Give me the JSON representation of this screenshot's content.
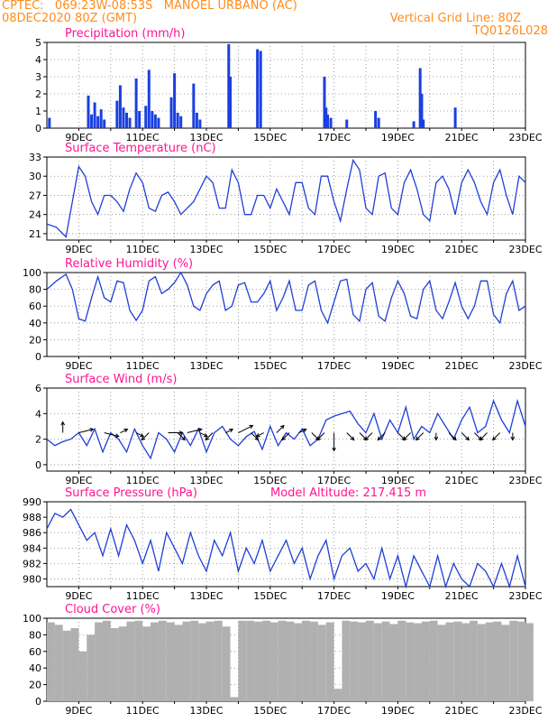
{
  "header": {
    "line1_left": "CPTEC:   069:23W-08:53S   MANOEL URBANO (AC)",
    "line2_left": "08DEC2020 80Z (GMT)",
    "line2_right": "Vertical Grid Line: 80Z",
    "line3_right": "TQ0126L028"
  },
  "colors": {
    "header": "#ff8c1a",
    "title": "#ff1493",
    "line": "#1f3fd6",
    "bar": "#1a3fe0",
    "cloud": "#b0b0b0"
  },
  "chart_data": [
    {
      "type": "bar",
      "title": "Precipitation (mm/h)",
      "ylim": [
        0,
        5
      ],
      "yticks": [
        "0",
        "1",
        "2",
        "3",
        "4",
        "5"
      ],
      "x_range_days": [
        8.0,
        23.0
      ],
      "xticks": [
        "9DEC",
        "11DEC",
        "13DEC",
        "15DEC",
        "17DEC",
        "19DEC",
        "21DEC",
        "23DEC"
      ],
      "x": [
        8.08,
        9.3,
        9.4,
        9.5,
        9.6,
        9.7,
        9.8,
        10.2,
        10.3,
        10.4,
        10.5,
        10.6,
        10.8,
        10.9,
        11.1,
        11.2,
        11.3,
        11.4,
        11.5,
        11.9,
        12.0,
        12.1,
        12.2,
        12.6,
        12.7,
        12.8,
        13.7,
        13.75,
        14.6,
        14.7,
        16.7,
        16.75,
        16.8,
        16.9,
        17.4,
        18.3,
        18.4,
        19.5,
        19.7,
        19.75,
        19.8,
        20.8
      ],
      "values": [
        0.6,
        1.9,
        0.8,
        1.5,
        0.7,
        1.1,
        0.5,
        1.6,
        2.5,
        1.2,
        0.9,
        0.6,
        2.9,
        1.0,
        1.3,
        3.4,
        1.0,
        0.8,
        0.6,
        1.8,
        3.2,
        0.9,
        0.7,
        2.6,
        0.9,
        0.5,
        4.9,
        3.0,
        4.6,
        4.5,
        3.0,
        1.2,
        0.8,
        0.6,
        0.5,
        1.0,
        0.6,
        0.4,
        3.5,
        2.0,
        0.5,
        1.2
      ]
    },
    {
      "type": "line",
      "title": "Surface Temperature (nC)",
      "ylim": [
        20,
        33
      ],
      "yticks": [
        "21",
        "24",
        "27",
        "30",
        "33"
      ],
      "x_range_days": [
        8.0,
        23.0
      ],
      "xticks": [
        "9DEC",
        "11DEC",
        "13DEC",
        "15DEC",
        "17DEC",
        "19DEC",
        "21DEC",
        "23DEC"
      ],
      "x": [
        8.0,
        8.3,
        8.6,
        8.8,
        9.0,
        9.2,
        9.4,
        9.6,
        9.8,
        10.0,
        10.2,
        10.4,
        10.6,
        10.8,
        11.0,
        11.2,
        11.4,
        11.6,
        11.8,
        12.0,
        12.2,
        12.4,
        12.6,
        12.8,
        13.0,
        13.2,
        13.4,
        13.6,
        13.8,
        14.0,
        14.2,
        14.4,
        14.6,
        14.8,
        15.0,
        15.2,
        15.4,
        15.6,
        15.8,
        16.0,
        16.2,
        16.4,
        16.6,
        16.8,
        17.0,
        17.2,
        17.4,
        17.6,
        17.8,
        18.0,
        18.2,
        18.4,
        18.6,
        18.8,
        19.0,
        19.2,
        19.4,
        19.6,
        19.8,
        20.0,
        20.2,
        20.4,
        20.6,
        20.8,
        21.0,
        21.2,
        21.4,
        21.6,
        21.8,
        22.0,
        22.2,
        22.4,
        22.6,
        22.8,
        23.0
      ],
      "values": [
        22.5,
        22,
        20.5,
        26,
        31.5,
        30,
        26,
        24,
        27,
        27,
        26,
        24.5,
        28,
        30.5,
        29,
        25,
        24.5,
        27,
        27.5,
        26,
        24,
        25,
        26,
        28,
        30,
        29,
        25,
        25,
        31,
        29,
        24,
        24,
        27,
        27,
        25,
        28,
        26,
        24,
        29,
        29,
        25,
        24,
        30,
        30,
        26,
        23,
        28,
        32.5,
        31,
        25,
        24,
        30,
        30.5,
        25,
        24,
        29,
        31,
        28,
        24,
        23,
        29,
        30,
        28,
        24,
        29,
        31,
        29,
        26,
        24,
        29,
        31,
        27,
        24,
        30,
        29
      ]
    },
    {
      "type": "line",
      "title": "Relative Humidity (%)",
      "ylim": [
        0,
        100
      ],
      "yticks": [
        "0",
        "20",
        "40",
        "60",
        "80",
        "100"
      ],
      "x_range_days": [
        8.0,
        23.0
      ],
      "xticks": [
        "9DEC",
        "11DEC",
        "13DEC",
        "15DEC",
        "17DEC",
        "19DEC",
        "21DEC",
        "23DEC"
      ],
      "x": [
        8.0,
        8.3,
        8.6,
        8.8,
        9.0,
        9.2,
        9.4,
        9.6,
        9.8,
        10.0,
        10.2,
        10.4,
        10.6,
        10.8,
        11.0,
        11.2,
        11.4,
        11.6,
        11.8,
        12.0,
        12.2,
        12.4,
        12.6,
        12.8,
        13.0,
        13.2,
        13.4,
        13.6,
        13.8,
        14.0,
        14.2,
        14.4,
        14.6,
        14.8,
        15.0,
        15.2,
        15.4,
        15.6,
        15.8,
        16.0,
        16.2,
        16.4,
        16.6,
        16.8,
        17.0,
        17.2,
        17.4,
        17.6,
        17.8,
        18.0,
        18.2,
        18.4,
        18.6,
        18.8,
        19.0,
        19.2,
        19.4,
        19.6,
        19.8,
        20.0,
        20.2,
        20.4,
        20.6,
        20.8,
        21.0,
        21.2,
        21.4,
        21.6,
        21.8,
        22.0,
        22.2,
        22.4,
        22.6,
        22.8,
        23.0
      ],
      "values": [
        80,
        90,
        98,
        80,
        45,
        42,
        70,
        95,
        70,
        65,
        90,
        88,
        55,
        43,
        55,
        90,
        95,
        75,
        80,
        88,
        100,
        85,
        60,
        55,
        75,
        85,
        90,
        55,
        60,
        85,
        88,
        65,
        65,
        75,
        90,
        55,
        70,
        90,
        55,
        55,
        85,
        90,
        55,
        40,
        65,
        90,
        92,
        50,
        42,
        80,
        88,
        48,
        42,
        70,
        90,
        75,
        48,
        45,
        80,
        90,
        55,
        45,
        65,
        88,
        60,
        45,
        60,
        90,
        90,
        50,
        40,
        75,
        90,
        55,
        60
      ]
    },
    {
      "type": "line",
      "title": "Surface Wind (m/s)",
      "ylim": [
        -0.5,
        6
      ],
      "yticks": [
        "0",
        "2",
        "4",
        "6"
      ],
      "x_range_days": [
        8.0,
        23.0
      ],
      "xticks": [
        "9DEC",
        "11DEC",
        "13DEC",
        "15DEC",
        "17DEC",
        "19DEC",
        "21DEC",
        "23DEC"
      ],
      "x": [
        8.0,
        8.25,
        8.5,
        8.75,
        9.0,
        9.25,
        9.5,
        9.75,
        10.0,
        10.25,
        10.5,
        10.75,
        11.0,
        11.25,
        11.5,
        11.75,
        12.0,
        12.25,
        12.5,
        12.75,
        13.0,
        13.25,
        13.5,
        13.75,
        14.0,
        14.25,
        14.5,
        14.75,
        15.0,
        15.25,
        15.5,
        15.75,
        16.0,
        16.25,
        16.5,
        16.75,
        17.0,
        17.25,
        17.5,
        17.75,
        18.0,
        18.25,
        18.5,
        18.75,
        19.0,
        19.25,
        19.5,
        19.75,
        20.0,
        20.25,
        20.5,
        20.75,
        21.0,
        21.25,
        21.5,
        21.75,
        22.0,
        22.25,
        22.5,
        22.75,
        23.0
      ],
      "values": [
        2.0,
        1.5,
        1.8,
        2.0,
        2.5,
        1.5,
        2.8,
        1.0,
        2.5,
        2.0,
        1.0,
        2.8,
        1.5,
        0.5,
        2.5,
        2.0,
        1.0,
        2.5,
        1.5,
        2.8,
        1.0,
        2.5,
        3.0,
        2.0,
        1.5,
        2.2,
        2.6,
        1.2,
        3.0,
        1.5,
        2.5,
        2.0,
        2.8,
        1.5,
        2.0,
        3.5,
        3.8,
        4.0,
        4.2,
        3.2,
        2.5,
        4.0,
        2.0,
        3.5,
        2.5,
        4.5,
        2.0,
        3.0,
        2.5,
        4.0,
        3.0,
        2.0,
        3.5,
        4.5,
        2.5,
        3.0,
        5.0,
        3.5,
        2.5,
        5.0,
        3.0
      ],
      "arrow_x": [
        8.5,
        9.0,
        9.8,
        10.3,
        10.8,
        11.2,
        11.8,
        12.1,
        12.4,
        12.8,
        13.2,
        13.6,
        14.0,
        14.4,
        14.8,
        15.2,
        15.6,
        15.9,
        16.3,
        16.7,
        17.0,
        17.4,
        17.8,
        18.2,
        18.6,
        19.0,
        19.4,
        19.8,
        20.2,
        20.6,
        21.0,
        21.4,
        21.8,
        22.2,
        22.6
      ],
      "arrow_u": [
        0,
        2,
        2,
        1,
        1,
        -1,
        2,
        1,
        2,
        1,
        -1,
        1,
        2,
        1,
        -1,
        1,
        -1,
        1,
        1,
        -1,
        0,
        1,
        1,
        -1,
        -1,
        1,
        -1,
        -1,
        0,
        1,
        1,
        1,
        -1,
        -1,
        0
      ],
      "arrow_v": [
        1.5,
        0.5,
        -0.5,
        0.5,
        -0.5,
        -1,
        0,
        -1,
        0.5,
        -0.5,
        -1,
        0.5,
        1,
        -1,
        -0.5,
        1,
        -1,
        0.5,
        -1,
        -1,
        -2.5,
        -1,
        -1,
        -1,
        -1,
        -1,
        -1,
        -1,
        -1,
        -1,
        -1,
        -1,
        -1,
        -1,
        -1
      ]
    },
    {
      "type": "line",
      "title": "Surface Pressure (hPa)",
      "annotation": "Model Altitude: 217.415  m",
      "ylim": [
        979,
        990
      ],
      "yticks": [
        "980",
        "982",
        "984",
        "986",
        "988",
        "990"
      ],
      "x_range_days": [
        8.0,
        23.0
      ],
      "xticks": [
        "9DEC",
        "11DEC",
        "13DEC",
        "15DEC",
        "17DEC",
        "19DEC",
        "21DEC",
        "23DEC"
      ],
      "x": [
        8.0,
        8.25,
        8.5,
        8.75,
        9.0,
        9.25,
        9.5,
        9.75,
        10.0,
        10.25,
        10.5,
        10.75,
        11.0,
        11.25,
        11.5,
        11.75,
        12.0,
        12.25,
        12.5,
        12.75,
        13.0,
        13.25,
        13.5,
        13.75,
        14.0,
        14.25,
        14.5,
        14.75,
        15.0,
        15.25,
        15.5,
        15.75,
        16.0,
        16.25,
        16.5,
        16.75,
        17.0,
        17.25,
        17.5,
        17.75,
        18.0,
        18.25,
        18.5,
        18.75,
        19.0,
        19.25,
        19.5,
        19.75,
        20.0,
        20.25,
        20.5,
        20.75,
        21.0,
        21.25,
        21.5,
        21.75,
        22.0,
        22.25,
        22.5,
        22.75,
        23.0
      ],
      "values": [
        986.5,
        988.5,
        988,
        989,
        987,
        985,
        986,
        983,
        986.5,
        983,
        987,
        985,
        982,
        985,
        981,
        986,
        984,
        982,
        986,
        983,
        981,
        985,
        983,
        986,
        981,
        984,
        982,
        985,
        981,
        983,
        985,
        982,
        984,
        980,
        983,
        985,
        980,
        983,
        984,
        981,
        982,
        980,
        984,
        980,
        983,
        979,
        983,
        981,
        979,
        983,
        979,
        982,
        980,
        979,
        982,
        981,
        979,
        982,
        978,
        983,
        979
      ]
    },
    {
      "type": "bar",
      "title": "Cloud Cover (%)",
      "ylim": [
        0,
        100
      ],
      "yticks": [
        "0",
        "20",
        "40",
        "60",
        "80",
        "100"
      ],
      "x_range_days": [
        8.0,
        23.0
      ],
      "xticks": [
        "9DEC",
        "11DEC",
        "13DEC",
        "15DEC",
        "17DEC",
        "19DEC",
        "21DEC",
        "23DEC"
      ],
      "x": [
        8.0,
        8.25,
        8.5,
        8.75,
        9.0,
        9.25,
        9.5,
        9.75,
        10.0,
        10.25,
        10.5,
        10.75,
        11.0,
        11.25,
        11.5,
        11.75,
        12.0,
        12.25,
        12.5,
        12.75,
        13.0,
        13.25,
        13.5,
        13.75,
        14.0,
        14.25,
        14.5,
        14.75,
        15.0,
        15.25,
        15.5,
        15.75,
        16.0,
        16.25,
        16.5,
        16.75,
        17.0,
        17.25,
        17.5,
        17.75,
        18.0,
        18.25,
        18.5,
        18.75,
        19.0,
        19.25,
        19.5,
        19.75,
        20.0,
        20.25,
        20.5,
        20.75,
        21.0,
        21.25,
        21.5,
        21.75,
        22.0,
        22.25,
        22.5,
        22.75,
        23.0
      ],
      "values": [
        95,
        92,
        85,
        88,
        60,
        80,
        95,
        97,
        88,
        90,
        96,
        97,
        90,
        95,
        97,
        95,
        92,
        96,
        97,
        94,
        96,
        97,
        90,
        5,
        97,
        97,
        96,
        97,
        95,
        97,
        96,
        94,
        97,
        96,
        92,
        95,
        15,
        97,
        96,
        95,
        97,
        94,
        96,
        93,
        97,
        95,
        94,
        96,
        97,
        92,
        95,
        96,
        94,
        97,
        93,
        95,
        96,
        92,
        97,
        96,
        94
      ]
    }
  ]
}
